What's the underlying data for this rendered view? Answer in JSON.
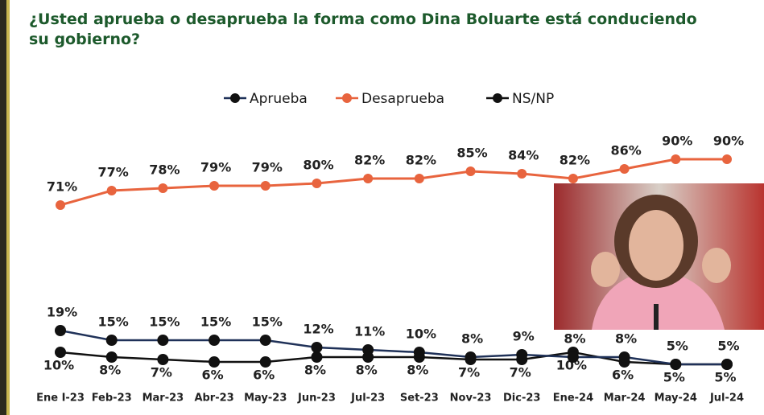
{
  "chart_data": {
    "type": "line",
    "title": "¿Usted aprueba o desaprueba la forma como Dina Boluarte está conduciendo su gobierno?",
    "categories": [
      "Ene I-23",
      "Feb-23",
      "Mar-23",
      "Abr-23",
      "May-23",
      "Jun-23",
      "Jul-23",
      "Set-23",
      "Nov-23",
      "Dic-23",
      "Ene-24",
      "Mar-24",
      "May-24",
      "Jul-24"
    ],
    "series": [
      {
        "name": "Aprueba",
        "color": "#1f3158",
        "values": [
          19,
          15,
          15,
          15,
          15,
          12,
          11,
          10,
          8,
          9,
          8,
          8,
          5,
          5
        ],
        "value_labels": [
          "19%",
          "15%",
          "15%",
          "15%",
          "15%",
          "12%",
          "11%",
          "10%",
          "8%",
          "9%",
          "8%",
          "8%",
          "5%",
          "5%"
        ]
      },
      {
        "name": "Desaprueba",
        "color": "#e8643e",
        "values": [
          71,
          77,
          78,
          79,
          79,
          80,
          82,
          82,
          85,
          84,
          82,
          86,
          90,
          90
        ],
        "value_labels": [
          "71%",
          "77%",
          "78%",
          "79%",
          "79%",
          "80%",
          "82%",
          "82%",
          "85%",
          "84%",
          "82%",
          "86%",
          "90%",
          "90%"
        ]
      },
      {
        "name": "NS/NP",
        "color": "#111111",
        "values": [
          10,
          8,
          7,
          6,
          6,
          8,
          8,
          8,
          7,
          7,
          10,
          6,
          5,
          5
        ],
        "value_labels": [
          "10%",
          "8%",
          "7%",
          "6%",
          "6%",
          "8%",
          "8%",
          "8%",
          "7%",
          "7%",
          "10%",
          "6%",
          "5%",
          "5%"
        ]
      }
    ],
    "legend": "top"
  }
}
